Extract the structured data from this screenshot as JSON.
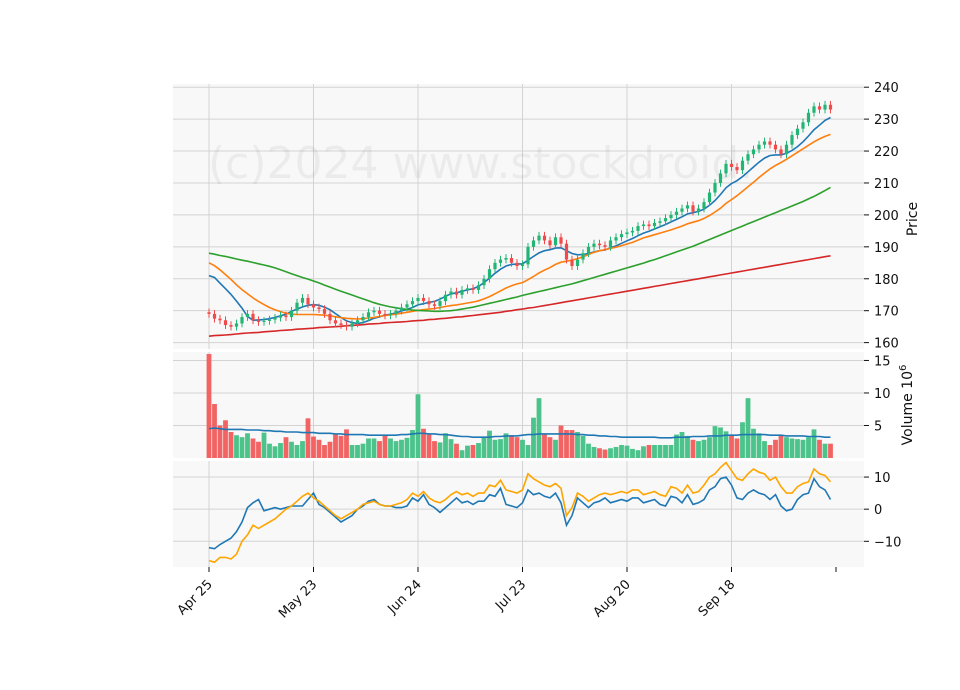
{
  "watermark": "(c)2024 www.stockdroid.",
  "chart_data": {
    "type": "candlestick",
    "x_tick_labels": [
      "Apr 25",
      "May 23",
      "Jun 24",
      "Jul 23",
      "Aug 20",
      "Sep 18"
    ],
    "x_tick_index": [
      0,
      19,
      38,
      57,
      76,
      95
    ],
    "price_panel": {
      "ylabel": "Price",
      "ylim": [
        158,
        241
      ],
      "yticks": [
        160,
        170,
        180,
        190,
        200,
        210,
        220,
        230,
        240
      ],
      "up_color": "#22b573",
      "down_color": "#f04a4a",
      "close": [
        169.0,
        167.5,
        167.0,
        165.5,
        165.0,
        166.0,
        168.0,
        169.0,
        167.0,
        166.5,
        166.8,
        167.2,
        167.8,
        168.5,
        168.0,
        170.0,
        172.5,
        174.0,
        172.0,
        171.0,
        170.5,
        169.0,
        167.0,
        166.0,
        165.5,
        165.0,
        166.0,
        167.0,
        168.0,
        169.5,
        170.0,
        169.0,
        168.5,
        169.0,
        170.0,
        171.0,
        172.0,
        173.0,
        174.0,
        173.0,
        172.0,
        171.5,
        173.0,
        175.0,
        176.0,
        175.0,
        176.5,
        177.0,
        176.5,
        178.0,
        180.0,
        183.0,
        185.0,
        186.0,
        186.5,
        185.0,
        184.0,
        184.5,
        190.0,
        192.0,
        193.5,
        192.0,
        190.5,
        193.0,
        191.0,
        186.0,
        184.0,
        186.0,
        188.0,
        190.0,
        191.0,
        190.5,
        190.0,
        192.0,
        193.0,
        194.0,
        194.5,
        195.0,
        196.5,
        197.0,
        196.5,
        197.5,
        198.0,
        199.0,
        200.0,
        201.0,
        202.0,
        203.0,
        201.0,
        202.0,
        204.0,
        207.0,
        210.0,
        213.0,
        216.0,
        215.0,
        214.0,
        217.0,
        219.0,
        220.5,
        222.0,
        223.0,
        222.0,
        220.5,
        219.0,
        222.0,
        225.0,
        227.0,
        229.0,
        232.0,
        234.0,
        233.0,
        234.5,
        233.0
      ],
      "ma_series": [
        {
          "color": "#1f77b4",
          "values": [
            181.0,
            180.4,
            178.6,
            176.9,
            175.1,
            173.0,
            170.8,
            168.2,
            167.0,
            167.1,
            167.2,
            167.5,
            167.9,
            168.4,
            168.9,
            169.8,
            170.5,
            171.2,
            171.7,
            171.9,
            171.7,
            171.1,
            170.3,
            169.1,
            167.9,
            166.8,
            166.3,
            166.0,
            166.3,
            166.9,
            167.6,
            168.1,
            168.6,
            168.9,
            169.3,
            169.9,
            170.4,
            171.0,
            171.8,
            172.2,
            172.6,
            172.9,
            173.6,
            174.5,
            175.3,
            175.6,
            176.1,
            176.5,
            176.9,
            177.6,
            178.8,
            180.2,
            181.7,
            183.0,
            184.0,
            184.5,
            184.6,
            184.7,
            185.8,
            187.0,
            188.1,
            188.8,
            189.1,
            189.6,
            189.7,
            188.8,
            187.9,
            187.5,
            187.6,
            187.9,
            188.4,
            188.8,
            189.0,
            189.7,
            190.3,
            191.1,
            191.9,
            192.6,
            193.5,
            194.3,
            194.9,
            195.6,
            196.3,
            197.0,
            197.8,
            198.6,
            199.4,
            200.3,
            200.7,
            201.1,
            201.8,
            203.0,
            204.5,
            206.4,
            208.5,
            209.8,
            210.7,
            212.0,
            213.5,
            215.0,
            216.5,
            217.8,
            218.6,
            218.8,
            218.8,
            219.3,
            220.2,
            221.4,
            222.9,
            224.7,
            226.7,
            228.1,
            229.6,
            230.5
          ]
        },
        {
          "color": "#ff7f0e",
          "values": [
            185.0,
            184.1,
            182.8,
            181.3,
            179.8,
            178.1,
            176.6,
            175.3,
            174.0,
            172.9,
            171.9,
            171.0,
            170.3,
            169.7,
            169.2,
            168.9,
            168.8,
            168.8,
            168.8,
            168.8,
            168.7,
            168.6,
            168.4,
            168.1,
            167.8,
            167.6,
            167.5,
            167.4,
            167.5,
            167.7,
            167.9,
            168.2,
            168.5,
            168.7,
            168.9,
            169.2,
            169.5,
            169.8,
            170.1,
            170.3,
            170.5,
            170.7,
            171.0,
            171.3,
            171.6,
            171.8,
            172.1,
            172.4,
            172.7,
            173.1,
            173.7,
            174.4,
            175.3,
            176.2,
            177.1,
            177.8,
            178.4,
            178.8,
            179.7,
            180.7,
            181.8,
            182.7,
            183.5,
            184.5,
            185.2,
            185.5,
            185.8,
            186.3,
            186.9,
            187.6,
            188.3,
            188.8,
            189.1,
            189.5,
            189.9,
            190.4,
            190.9,
            191.4,
            192.1,
            192.8,
            193.3,
            193.8,
            194.3,
            194.8,
            195.3,
            195.9,
            196.5,
            197.2,
            197.7,
            198.2,
            198.9,
            199.8,
            200.9,
            202.1,
            203.6,
            204.8,
            206.0,
            207.4,
            208.8,
            210.2,
            211.7,
            213.1,
            214.4,
            215.5,
            216.4,
            217.4,
            218.5,
            219.6,
            220.7,
            221.8,
            222.9,
            223.8,
            224.6,
            225.2
          ]
        },
        {
          "color": "#2ca02c",
          "values": [
            188.0,
            187.7,
            187.3,
            187.0,
            186.6,
            186.2,
            185.8,
            185.5,
            185.1,
            184.7,
            184.3,
            183.9,
            183.4,
            182.8,
            182.2,
            181.6,
            181.0,
            180.4,
            179.9,
            179.3,
            178.7,
            178.0,
            177.4,
            176.7,
            176.1,
            175.5,
            174.9,
            174.3,
            173.7,
            173.1,
            172.5,
            172.0,
            171.6,
            171.2,
            170.9,
            170.6,
            170.4,
            170.2,
            170.1,
            170.0,
            169.9,
            169.8,
            169.8,
            169.9,
            170.0,
            170.2,
            170.5,
            170.8,
            171.1,
            171.5,
            171.9,
            172.3,
            172.7,
            173.1,
            173.5,
            173.9,
            174.3,
            174.8,
            175.2,
            175.6,
            176.0,
            176.4,
            176.8,
            177.2,
            177.6,
            178.0,
            178.4,
            178.9,
            179.4,
            179.9,
            180.4,
            180.9,
            181.4,
            181.9,
            182.4,
            182.9,
            183.4,
            183.9,
            184.4,
            184.9,
            185.5,
            186.0,
            186.6,
            187.2,
            187.8,
            188.4,
            189.0,
            189.6,
            190.2,
            190.9,
            191.6,
            192.3,
            193.0,
            193.7,
            194.4,
            195.1,
            195.8,
            196.5,
            197.2,
            197.9,
            198.6,
            199.3,
            200.0,
            200.7,
            201.4,
            202.1,
            202.8,
            203.5,
            204.2,
            205.0,
            205.8,
            206.7,
            207.6,
            208.6
          ]
        },
        {
          "color": "#d62728",
          "values": [
            162.0,
            162.2,
            162.3,
            162.4,
            162.5,
            162.7,
            162.9,
            163.0,
            163.1,
            163.2,
            163.4,
            163.5,
            163.6,
            163.8,
            163.9,
            164.0,
            164.2,
            164.3,
            164.4,
            164.5,
            164.7,
            164.8,
            164.9,
            165.0,
            165.1,
            165.3,
            165.4,
            165.5,
            165.6,
            165.8,
            165.9,
            166.0,
            166.2,
            166.3,
            166.4,
            166.5,
            166.6,
            166.8,
            166.9,
            167.0,
            167.2,
            167.3,
            167.5,
            167.6,
            167.8,
            168.0,
            168.1,
            168.3,
            168.5,
            168.7,
            168.9,
            169.1,
            169.3,
            169.5,
            169.8,
            170.0,
            170.3,
            170.5,
            170.8,
            171.0,
            171.3,
            171.6,
            171.9,
            172.2,
            172.5,
            172.8,
            173.1,
            173.4,
            173.7,
            174.0,
            174.3,
            174.6,
            174.9,
            175.2,
            175.5,
            175.8,
            176.1,
            176.4,
            176.7,
            177.0,
            177.3,
            177.6,
            177.9,
            178.2,
            178.5,
            178.8,
            179.1,
            179.4,
            179.7,
            180.0,
            180.3,
            180.6,
            180.9,
            181.2,
            181.5,
            181.8,
            182.1,
            182.4,
            182.7,
            183.0,
            183.3,
            183.6,
            183.9,
            184.2,
            184.5,
            184.8,
            185.1,
            185.4,
            185.7,
            186.0,
            186.3,
            186.6,
            186.9,
            187.2
          ]
        }
      ]
    },
    "volume_panel": {
      "ylabel": "Volume  10",
      "ylabel_exponent": "6",
      "ylim": [
        0,
        16.3
      ],
      "yticks": [
        5,
        10,
        15
      ],
      "values": [
        16.0,
        8.3,
        5.0,
        5.8,
        4.0,
        3.5,
        3.2,
        3.8,
        3.0,
        2.5,
        3.9,
        2.2,
        1.8,
        2.3,
        3.2,
        2.5,
        2.0,
        2.6,
        6.1,
        3.3,
        2.8,
        2.0,
        2.5,
        3.6,
        3.4,
        4.4,
        2.0,
        2.0,
        2.2,
        3.0,
        3.0,
        2.6,
        3.5,
        3.0,
        2.6,
        2.8,
        3.1,
        4.3,
        9.8,
        4.5,
        3.6,
        2.6,
        2.4,
        3.8,
        2.9,
        2.2,
        1.2,
        1.9,
        2.0,
        2.3,
        3.2,
        4.2,
        2.8,
        2.9,
        3.8,
        3.5,
        3.2,
        2.8,
        2.0,
        6.2,
        9.2,
        3.6,
        3.2,
        2.8,
        5.0,
        4.3,
        4.3,
        4.0,
        3.4,
        2.2,
        1.7,
        1.5,
        1.3,
        1.5,
        1.7,
        2.0,
        1.9,
        1.4,
        1.2,
        1.8,
        2.0,
        2.0,
        2.0,
        2.0,
        2.0,
        3.6,
        4.0,
        3.4,
        2.8,
        2.6,
        2.8,
        3.2,
        4.9,
        4.7,
        4.1,
        3.6,
        3.0,
        5.5,
        9.2,
        4.5,
        3.8,
        2.6,
        2.0,
        2.8,
        3.4,
        3.2,
        3.0,
        2.9,
        2.8,
        3.2,
        4.4,
        2.8,
        2.2,
        2.2
      ],
      "avg_line": [
        4.5,
        4.6,
        4.5,
        4.4,
        4.4,
        4.4,
        4.4,
        4.3,
        4.3,
        4.3,
        4.2,
        4.2,
        4.1,
        4.1,
        4.0,
        4.0,
        4.0,
        3.9,
        3.9,
        3.9,
        3.8,
        3.8,
        3.8,
        3.7,
        3.7,
        3.6,
        3.6,
        3.6,
        3.6,
        3.5,
        3.5,
        3.5,
        3.5,
        3.5,
        3.5,
        3.6,
        3.6,
        3.7,
        3.8,
        3.8,
        3.7,
        3.7,
        3.6,
        3.6,
        3.5,
        3.4,
        3.3,
        3.3,
        3.2,
        3.2,
        3.2,
        3.2,
        3.3,
        3.3,
        3.4,
        3.4,
        3.4,
        3.5,
        3.6,
        3.6,
        3.7,
        3.7,
        3.7,
        3.7,
        3.7,
        3.7,
        3.7,
        3.6,
        3.6,
        3.5,
        3.5,
        3.4,
        3.4,
        3.3,
        3.3,
        3.2,
        3.2,
        3.2,
        3.2,
        3.2,
        3.2,
        3.2,
        3.1,
        3.1,
        3.1,
        3.2,
        3.2,
        3.2,
        3.3,
        3.3,
        3.3,
        3.4,
        3.4,
        3.4,
        3.5,
        3.5,
        3.5,
        3.6,
        3.6,
        3.6,
        3.6,
        3.6,
        3.5,
        3.5,
        3.5,
        3.4,
        3.4,
        3.4,
        3.4,
        3.3,
        3.3,
        3.3,
        3.2,
        3.2
      ],
      "avg_color": "#1f77b4"
    },
    "indicator_panel": {
      "ylim": [
        -18,
        15
      ],
      "yticks": [
        -10,
        0,
        10
      ],
      "series": [
        {
          "color": "#1f77b4",
          "values": [
            -12.0,
            -12.3,
            -11.0,
            -10.0,
            -9.0,
            -7.0,
            -4.0,
            0.5,
            2.0,
            3.0,
            -0.5,
            0.0,
            0.5,
            0.0,
            0.5,
            1.0,
            1.0,
            1.0,
            3.0,
            5.0,
            1.5,
            0.5,
            -1.0,
            -2.5,
            -4.0,
            -3.0,
            -2.0,
            0.0,
            1.0,
            2.5,
            3.0,
            1.5,
            1.0,
            1.0,
            0.5,
            0.5,
            1.0,
            3.5,
            2.5,
            4.5,
            1.5,
            0.5,
            -1.0,
            0.5,
            2.0,
            3.5,
            2.0,
            2.5,
            1.5,
            2.5,
            2.5,
            4.5,
            4.0,
            6.5,
            1.5,
            1.0,
            0.5,
            2.0,
            6.0,
            4.5,
            5.0,
            4.0,
            3.5,
            5.0,
            2.0,
            -5.0,
            -2.0,
            3.5,
            2.0,
            0.5,
            2.0,
            2.5,
            3.5,
            2.0,
            2.5,
            3.0,
            2.5,
            3.5,
            3.5,
            2.0,
            2.5,
            3.0,
            1.5,
            1.0,
            4.0,
            3.5,
            2.0,
            4.5,
            1.5,
            2.0,
            3.0,
            6.0,
            7.0,
            9.5,
            10.0,
            7.5,
            3.5,
            3.0,
            5.0,
            6.0,
            5.0,
            4.5,
            3.0,
            4.5,
            1.0,
            -0.5,
            0.0,
            3.0,
            4.5,
            5.0,
            9.5,
            7.0,
            6.0,
            3.0
          ]
        },
        {
          "color": "#ffa500",
          "values": [
            -16.0,
            -16.5,
            -15.0,
            -15.0,
            -15.5,
            -14.0,
            -10.0,
            -8.0,
            -5.0,
            -6.0,
            -5.0,
            -4.0,
            -3.0,
            -1.5,
            0.0,
            1.0,
            2.5,
            4.0,
            5.0,
            3.5,
            2.5,
            1.0,
            -0.5,
            -2.0,
            -3.0,
            -2.0,
            -1.0,
            0.0,
            1.5,
            2.0,
            2.5,
            1.5,
            1.0,
            1.0,
            1.5,
            2.0,
            3.0,
            5.0,
            4.0,
            5.5,
            3.5,
            2.5,
            2.0,
            3.0,
            4.5,
            5.5,
            4.5,
            5.0,
            4.0,
            5.0,
            5.0,
            7.5,
            7.0,
            9.0,
            6.0,
            5.5,
            5.0,
            6.0,
            11.0,
            9.5,
            8.5,
            7.5,
            7.0,
            8.0,
            6.5,
            -2.0,
            0.5,
            5.0,
            4.0,
            2.5,
            3.5,
            4.5,
            5.0,
            4.5,
            5.0,
            5.5,
            5.0,
            6.0,
            6.0,
            4.5,
            5.0,
            5.5,
            4.5,
            4.0,
            7.0,
            6.5,
            5.0,
            7.5,
            5.0,
            5.5,
            7.5,
            10.0,
            11.0,
            13.0,
            14.5,
            12.0,
            9.5,
            9.0,
            11.0,
            12.5,
            11.5,
            11.0,
            9.0,
            10.0,
            7.0,
            5.0,
            5.0,
            7.0,
            8.0,
            8.5,
            12.5,
            11.0,
            10.5,
            8.5
          ]
        }
      ]
    }
  }
}
